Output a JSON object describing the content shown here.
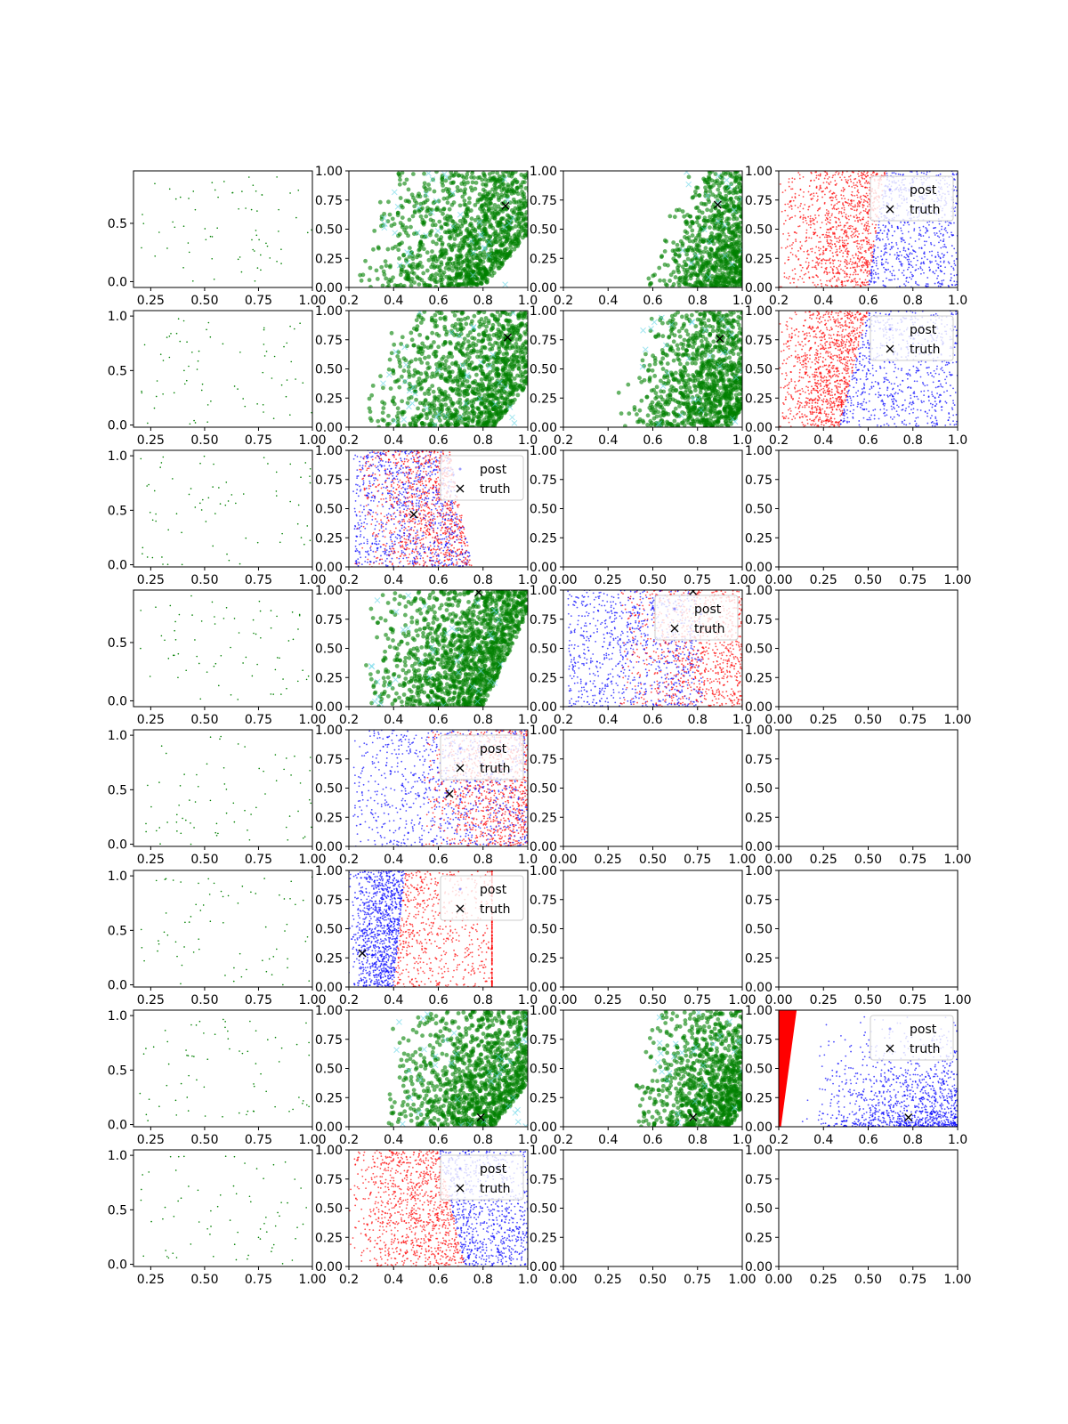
{
  "colors": {
    "green": "#008000",
    "cyan": "#5fd3e6",
    "red": "#ff0000",
    "blue": "#0000ff",
    "truth": "#000000"
  },
  "legend": {
    "post_label": "post",
    "truth_label": "truth"
  },
  "chart_data": [
    {
      "row": 0,
      "col": 0,
      "type": "scatter",
      "style": "sparse",
      "xlim": [
        0.17,
        1.0
      ],
      "ylim": [
        -0.05,
        0.95
      ],
      "xticks": [
        0.25,
        0.5,
        0.75,
        1.0
      ],
      "xtick_labels": [
        "0.25",
        "0.50",
        "0.75",
        "1.00"
      ],
      "yticks": [
        0.0,
        0.5
      ],
      "ytick_labels": [
        "0.0",
        "0.5"
      ]
    },
    {
      "row": 0,
      "col": 1,
      "type": "scatter",
      "style": "green",
      "xlim": [
        0.2,
        1.0
      ],
      "ylim": [
        0,
        1
      ],
      "wedge": [
        0.2,
        0.35,
        0.55,
        1.0
      ],
      "truth": [
        0.9,
        0.7
      ]
    },
    {
      "row": 0,
      "col": 2,
      "type": "scatter",
      "style": "green",
      "xlim": [
        0.2,
        1.0
      ],
      "ylim": [
        0,
        1
      ],
      "wedge": [
        0.55,
        0.72,
        0.75,
        1.0
      ],
      "truth": [
        0.89,
        0.71
      ]
    },
    {
      "row": 0,
      "col": 3,
      "type": "scatter",
      "style": "redblue",
      "xlim": [
        0.2,
        1.0
      ],
      "ylim": [
        0,
        1
      ],
      "boundary": [
        0.6,
        0.68
      ],
      "redLeft": true,
      "redMin": 0.2,
      "blueMax": 1.0,
      "truth": null,
      "legend": true
    },
    {
      "row": 1,
      "col": 0,
      "type": "scatter",
      "style": "sparse",
      "xlim": [
        0.17,
        1.0
      ],
      "ylim": [
        -0.02,
        1.05
      ],
      "xticks": [
        0.25,
        0.5,
        0.75,
        1.0
      ],
      "xtick_labels": [
        "0.25",
        "0.50",
        "0.75",
        "1.00"
      ],
      "yticks": [
        0.0,
        0.5,
        1.0
      ],
      "ytick_labels": [
        "0.0",
        "0.5",
        "1.0"
      ]
    },
    {
      "row": 1,
      "col": 1,
      "type": "scatter",
      "style": "green",
      "xlim": [
        0.2,
        1.0
      ],
      "ylim": [
        0,
        1
      ],
      "wedge": [
        0.22,
        0.35,
        0.6,
        1.0
      ],
      "truth": [
        0.91,
        0.77
      ]
    },
    {
      "row": 1,
      "col": 2,
      "type": "scatter",
      "style": "green",
      "xlim": [
        0.2,
        1.0
      ],
      "ylim": [
        0,
        1
      ],
      "wedge": [
        0.4,
        0.55,
        0.7,
        1.0
      ],
      "truth": [
        0.9,
        0.76
      ]
    },
    {
      "row": 1,
      "col": 3,
      "type": "scatter",
      "style": "redblue",
      "xlim": [
        0.2,
        1.0
      ],
      "ylim": [
        0,
        1
      ],
      "boundary": [
        0.47,
        0.6
      ],
      "redLeft": true,
      "redMin": 0.2,
      "blueMax": 1.0,
      "truth": null,
      "legend": true
    },
    {
      "row": 2,
      "col": 0,
      "type": "scatter",
      "style": "sparse",
      "xlim": [
        0.17,
        1.0
      ],
      "ylim": [
        -0.02,
        1.05
      ],
      "xticks": [
        0.25,
        0.5,
        0.75,
        1.0
      ],
      "xtick_labels": [
        "0.25",
        "0.50",
        "0.75",
        "1.00"
      ],
      "yticks": [
        0.0,
        0.5,
        1.0
      ],
      "ytick_labels": [
        "0.0",
        "0.5",
        "1.0"
      ]
    },
    {
      "row": 2,
      "col": 1,
      "type": "scatter",
      "style": "mixed",
      "xlim": [
        0.2,
        1.0
      ],
      "ylim": [
        0,
        1
      ],
      "redRange": [
        0.25,
        0.72
      ],
      "blueRange": [
        0.22,
        0.7
      ],
      "rightEdge": [
        0.75,
        0.65
      ],
      "truth": [
        0.49,
        0.45
      ],
      "legend": true
    },
    {
      "row": 2,
      "col": 2,
      "type": "empty"
    },
    {
      "row": 2,
      "col": 3,
      "type": "empty"
    },
    {
      "row": 3,
      "col": 0,
      "type": "scatter",
      "style": "sparse",
      "xlim": [
        0.17,
        1.0
      ],
      "ylim": [
        -0.05,
        0.95
      ],
      "xticks": [
        0.25,
        0.5,
        0.75,
        1.0
      ],
      "xtick_labels": [
        "0.25",
        "0.50",
        "0.75",
        "1.00"
      ],
      "yticks": [
        0.0,
        0.5
      ],
      "ytick_labels": [
        "0.0",
        "0.5"
      ]
    },
    {
      "row": 3,
      "col": 1,
      "type": "scatter",
      "style": "green",
      "xlim": [
        0.2,
        1.0
      ],
      "ylim": [
        0,
        1
      ],
      "wedge": [
        0.22,
        0.3,
        0.55,
        0.8
      ],
      "truth": [
        0.78,
        0.98
      ]
    },
    {
      "row": 3,
      "col": 2,
      "type": "scatter",
      "style": "mixed2",
      "xlim": [
        0.2,
        1.0
      ],
      "ylim": [
        0,
        1
      ],
      "truth": [
        0.78,
        0.99
      ],
      "legend": true
    },
    {
      "row": 3,
      "col": 3,
      "type": "empty"
    },
    {
      "row": 4,
      "col": 0,
      "type": "scatter",
      "style": "sparse",
      "xlim": [
        0.17,
        1.0
      ],
      "ylim": [
        -0.02,
        1.05
      ],
      "xticks": [
        0.25,
        0.5,
        0.75,
        1.0
      ],
      "xtick_labels": [
        "0.25",
        "0.50",
        "0.75",
        "1.00"
      ],
      "yticks": [
        0.0,
        0.5,
        1.0
      ],
      "ytick_labels": [
        "0.0",
        "0.5",
        "1.0"
      ]
    },
    {
      "row": 4,
      "col": 1,
      "type": "scatter",
      "style": "mixed3",
      "xlim": [
        0.2,
        1.0
      ],
      "ylim": [
        0,
        1
      ],
      "truth": [
        0.65,
        0.45
      ],
      "legend": true
    },
    {
      "row": 4,
      "col": 2,
      "type": "empty"
    },
    {
      "row": 4,
      "col": 3,
      "type": "empty"
    },
    {
      "row": 5,
      "col": 0,
      "type": "scatter",
      "style": "sparse",
      "xlim": [
        0.17,
        1.0
      ],
      "ylim": [
        -0.02,
        1.05
      ],
      "xticks": [
        0.25,
        0.5,
        0.75,
        1.0
      ],
      "xtick_labels": [
        "0.25",
        "0.50",
        "0.75",
        "1.00"
      ],
      "yticks": [
        0.0,
        0.5,
        1.0
      ],
      "ytick_labels": [
        "0.0",
        "0.5",
        "1.0"
      ]
    },
    {
      "row": 5,
      "col": 1,
      "type": "scatter",
      "style": "redblue",
      "xlim": [
        0.2,
        1.0
      ],
      "ylim": [
        0,
        1
      ],
      "boundary": [
        0.4,
        0.45
      ],
      "redLeft": false,
      "redMax": 0.8,
      "blueMin": 0.2,
      "truth": [
        0.26,
        0.29
      ],
      "legend": true
    },
    {
      "row": 5,
      "col": 2,
      "type": "empty"
    },
    {
      "row": 5,
      "col": 3,
      "type": "empty"
    },
    {
      "row": 6,
      "col": 0,
      "type": "scatter",
      "style": "sparse",
      "xlim": [
        0.17,
        1.0
      ],
      "ylim": [
        -0.02,
        1.05
      ],
      "xticks": [
        0.25,
        0.5,
        0.75,
        1.0
      ],
      "xtick_labels": [
        "0.25",
        "0.50",
        "0.75",
        "1.00"
      ],
      "yticks": [
        0.0,
        0.5,
        1.0
      ],
      "ytick_labels": [
        "0.0",
        "0.5",
        "1.0"
      ]
    },
    {
      "row": 6,
      "col": 1,
      "type": "scatter",
      "style": "green",
      "xlim": [
        0.2,
        1.0
      ],
      "ylim": [
        0,
        1
      ],
      "wedge": [
        0.3,
        0.4,
        0.6,
        1.0
      ],
      "truth": [
        0.79,
        0.08
      ]
    },
    {
      "row": 6,
      "col": 2,
      "type": "scatter",
      "style": "green",
      "xlim": [
        0.2,
        1.0
      ],
      "ylim": [
        0,
        1
      ],
      "wedge": [
        0.45,
        0.6,
        0.7,
        1.0
      ],
      "truth": [
        0.78,
        0.08
      ]
    },
    {
      "row": 6,
      "col": 3,
      "type": "scatter",
      "style": "spike",
      "xlim": [
        0.2,
        1.0
      ],
      "ylim": [
        0,
        1
      ],
      "truth": [
        0.78,
        0.08
      ],
      "legend": true
    },
    {
      "row": 7,
      "col": 0,
      "type": "scatter",
      "style": "sparse",
      "xlim": [
        0.17,
        1.0
      ],
      "ylim": [
        -0.02,
        1.05
      ],
      "xticks": [
        0.25,
        0.5,
        0.75,
        1.0
      ],
      "xtick_labels": [
        "0.25",
        "0.50",
        "0.75",
        "1.00"
      ],
      "yticks": [
        0.0,
        0.5,
        1.0
      ],
      "ytick_labels": [
        "0.0",
        "0.5",
        "1.0"
      ]
    },
    {
      "row": 7,
      "col": 1,
      "type": "scatter",
      "style": "redblue",
      "xlim": [
        0.2,
        1.0
      ],
      "ylim": [
        0,
        1
      ],
      "boundary": [
        0.72,
        0.6
      ],
      "redLeft": true,
      "redMin": 0.2,
      "blueMax": 1.0,
      "truth": null,
      "legend": true
    },
    {
      "row": 7,
      "col": 2,
      "type": "empty"
    },
    {
      "row": 7,
      "col": 3,
      "type": "empty"
    }
  ],
  "ticks": {
    "x02": [
      "0.2",
      "0.4",
      "0.6",
      "0.8",
      "1.0"
    ],
    "y01": [
      "0.00",
      "0.25",
      "0.50",
      "0.75",
      "1.00"
    ],
    "x0": [
      "0.00",
      "0.25",
      "0.50",
      "0.75",
      "1.00"
    ]
  }
}
